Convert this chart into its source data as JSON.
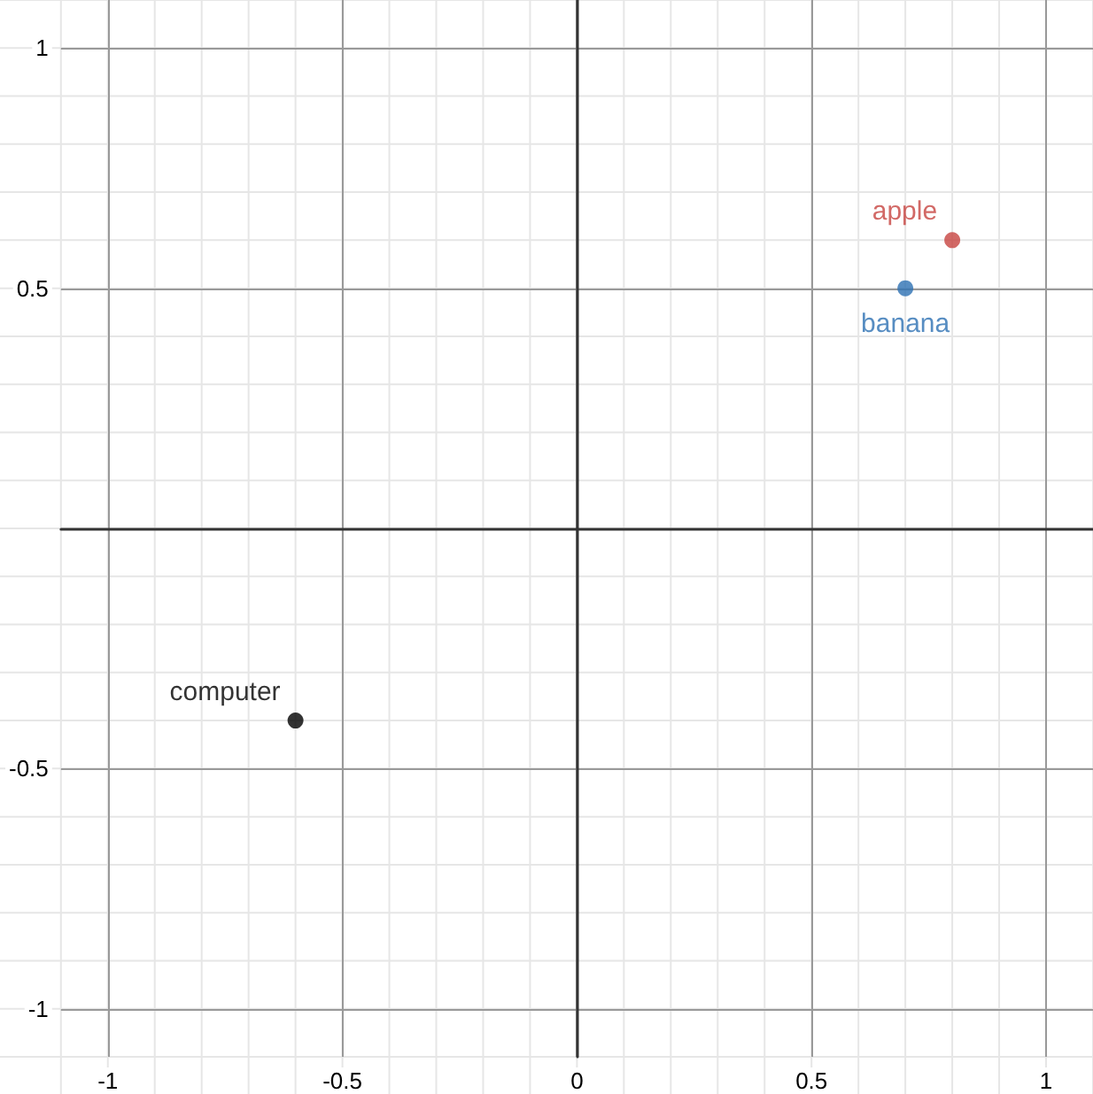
{
  "chart_data": {
    "type": "scatter",
    "series": [
      {
        "name": "apple",
        "color": "#c74440",
        "x": [
          0.8
        ],
        "values": [
          0.6
        ]
      },
      {
        "name": "banana",
        "color": "#2d70b3",
        "x": [
          0.7
        ],
        "values": [
          0.5
        ]
      },
      {
        "name": "computer",
        "color": "#000000",
        "x": [
          -0.6
        ],
        "values": [
          -0.4
        ]
      }
    ],
    "xlim": [
      -1.1,
      1.1
    ],
    "ylim": [
      -1.1,
      1.1
    ],
    "xticks": [
      -1,
      -0.5,
      0,
      0.5,
      1
    ],
    "yticks": [
      -1,
      -0.5,
      0.5,
      1
    ],
    "grid": true,
    "marker": "circle"
  }
}
